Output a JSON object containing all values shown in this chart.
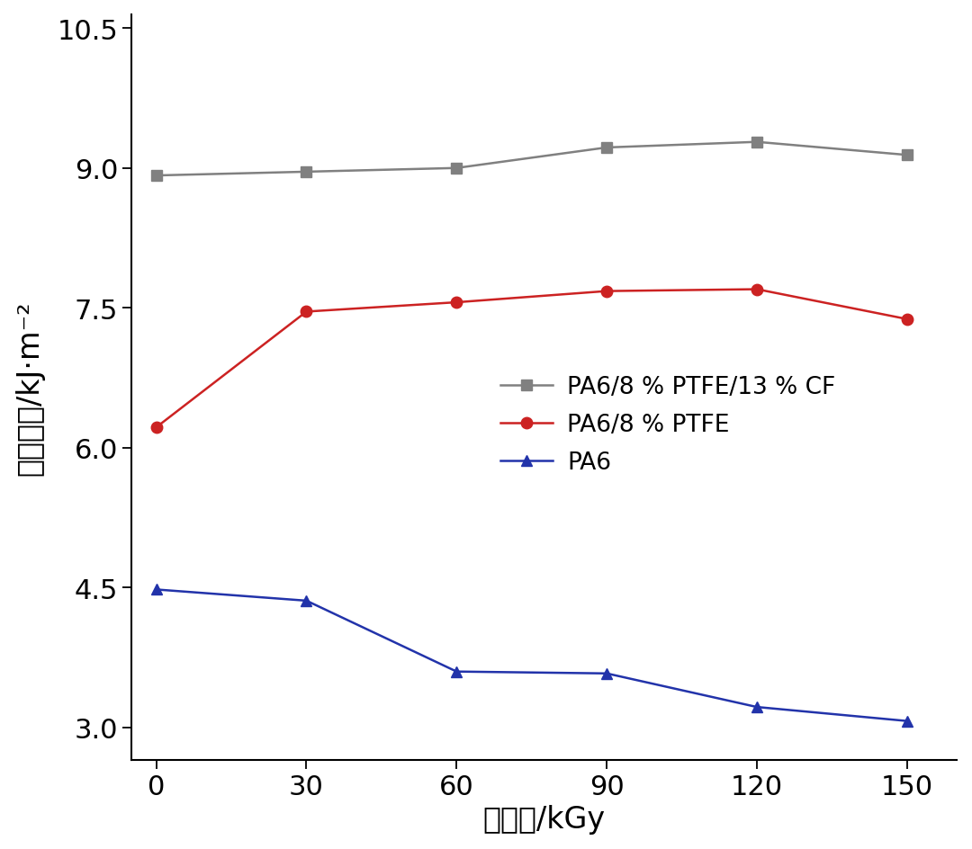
{
  "x": [
    0,
    30,
    60,
    90,
    120,
    150
  ],
  "series": [
    {
      "label": "PA6/8 % PTFE/13 % CF",
      "y": [
        8.92,
        8.96,
        9.0,
        9.22,
        9.28,
        9.14
      ],
      "color": "#808080",
      "marker": "s",
      "markersize": 9,
      "linewidth": 1.8
    },
    {
      "label": "PA6/8 % PTFE",
      "y": [
        6.22,
        7.46,
        7.56,
        7.68,
        7.7,
        7.38
      ],
      "color": "#cc2222",
      "marker": "o",
      "markersize": 9,
      "linewidth": 1.8
    },
    {
      "label": "PA6",
      "y": [
        4.48,
        4.36,
        3.6,
        3.58,
        3.22,
        3.07
      ],
      "color": "#2233aa",
      "marker": "^",
      "markersize": 9,
      "linewidth": 1.8
    }
  ],
  "xlabel": "吸收量/kGy",
  "ylabel": "冲击强度/kJ·m⁻²",
  "xlim": [
    -5,
    160
  ],
  "ylim": [
    2.65,
    10.65
  ],
  "xticks": [
    0,
    30,
    60,
    90,
    120,
    150
  ],
  "yticks": [
    3.0,
    4.5,
    6.0,
    7.5,
    9.0,
    10.5
  ],
  "xlabel_fontsize": 24,
  "ylabel_fontsize": 24,
  "tick_fontsize": 22,
  "legend_fontsize": 19,
  "background_color": "#ffffff",
  "figsize": [
    10.8,
    9.45
  ],
  "dpi": 100
}
